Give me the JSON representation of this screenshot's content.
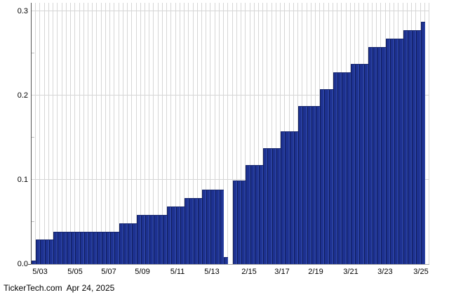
{
  "chart_data": {
    "type": "bar",
    "title": "",
    "xlabel": "",
    "ylabel": "",
    "ylim": [
      0,
      0.31
    ],
    "grid": "vertical line per bar slot; horizontal lines at major y ticks",
    "legend_position": "none",
    "bar_color": "#1d3190",
    "bar_edge_color": "#0f1c5a",
    "bar_highlight_color": "#2e46a6",
    "grid_color": "#d6d6d6",
    "axis_color": "#555555",
    "y_major_ticks": [
      {
        "label": "0.0",
        "value": 0.0
      },
      {
        "label": "0.1",
        "value": 0.1
      },
      {
        "label": "0.2",
        "value": 0.2
      },
      {
        "label": "0.3",
        "value": 0.3
      }
    ],
    "y_minor_ticks": [
      0.05,
      0.15,
      0.25
    ],
    "x_ticks": [
      {
        "label": "5/03",
        "slot": 1.93
      },
      {
        "label": "5/05",
        "slot": 9.95
      },
      {
        "label": "5/07",
        "slot": 17.65
      },
      {
        "label": "5/09",
        "slot": 25.36
      },
      {
        "label": "5/11",
        "slot": 33.38
      },
      {
        "label": "5/13",
        "slot": 41.25
      },
      {
        "label": "2/15",
        "slot": 49.75
      },
      {
        "label": "3/17",
        "slot": 57.29
      },
      {
        "label": "2/19",
        "slot": 65.0
      },
      {
        "label": "3/21",
        "slot": 73.02
      },
      {
        "label": "3/23",
        "slot": 80.88
      },
      {
        "label": "3/25",
        "slot": 89.07
      }
    ],
    "values": [
      0.004,
      0.029,
      0.029,
      0.029,
      0.029,
      0.0385,
      0.0385,
      0.0385,
      0.0385,
      0.0385,
      0.0385,
      0.0385,
      0.0385,
      0.0385,
      0.0385,
      0.0385,
      0.0385,
      0.0385,
      0.0385,
      0.0385,
      0.048,
      0.048,
      0.048,
      0.048,
      0.0585,
      0.0585,
      0.0585,
      0.0585,
      0.0585,
      0.0585,
      0.0585,
      0.0685,
      0.0685,
      0.0685,
      0.0685,
      0.0785,
      0.0785,
      0.0785,
      0.0785,
      0.0885,
      0.0885,
      0.0885,
      0.0885,
      0.0885,
      0.008,
      0,
      0.0995,
      0.0995,
      0.0995,
      0.1175,
      0.1175,
      0.1175,
      0.1175,
      0.1375,
      0.1375,
      0.1375,
      0.1375,
      0.1575,
      0.1575,
      0.1575,
      0.1575,
      0.1875,
      0.1875,
      0.1875,
      0.1875,
      0.1875,
      0.2075,
      0.2075,
      0.2075,
      0.2275,
      0.2275,
      0.2275,
      0.2275,
      0.2375,
      0.2375,
      0.2375,
      0.2375,
      0.2575,
      0.2575,
      0.2575,
      0.2575,
      0.2675,
      0.2675,
      0.2675,
      0.2675,
      0.2775,
      0.2775,
      0.2775,
      0.2775,
      0.2875,
      0
    ]
  },
  "footer": {
    "source": "TickerTech.com",
    "separator": "  ",
    "date": "Apr 24, 2025"
  }
}
